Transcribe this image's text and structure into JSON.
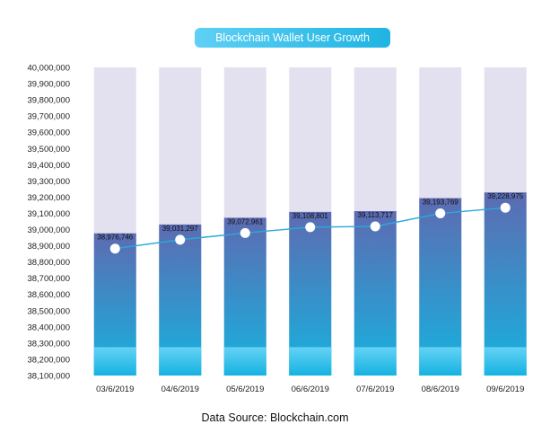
{
  "chart_data": {
    "type": "bar",
    "title": "Blockchain Wallet User Growth",
    "source": "Data Source: Blockchain.com",
    "categories": [
      "03/6/2019",
      "04/6/2019",
      "05/6/2019",
      "06/6/2019",
      "07/6/2019",
      "08/6/2019",
      "09/6/2019"
    ],
    "series": [
      {
        "values": [
          38976746,
          39031297,
          39072961,
          39108801,
          39113717,
          39193769,
          39228975
        ]
      }
    ],
    "data_labels": [
      "38,976,746",
      "39,031,297",
      "39,072,961",
      "39,108,801",
      "39,113,717",
      "39,193,769",
      "39,228,975"
    ],
    "ylim": [
      38100000,
      40000000
    ],
    "yticks": [
      38100000,
      38200000,
      38300000,
      38400000,
      38500000,
      38600000,
      38700000,
      38800000,
      38900000,
      39000000,
      39100000,
      39200000,
      39300000,
      39400000,
      39500000,
      39600000,
      39700000,
      39800000,
      39900000,
      40000000
    ],
    "ytick_labels": [
      "38,100,000",
      "38,200,000",
      "38,300,000",
      "38,400,000",
      "38,500,000",
      "38,600,000",
      "38,700,000",
      "38,800,000",
      "38,900,000",
      "39,000,000",
      "39,100,000",
      "39,200,000",
      "39,300,000",
      "39,400,000",
      "39,500,000",
      "39,600,000",
      "39,700,000",
      "39,800,000",
      "39,900,000",
      "40,000,000"
    ],
    "overlay": "line with markers",
    "legend": "none",
    "grid": false,
    "colors": {
      "bar_top": "#5d6bb2",
      "bar_bottom": "#15b3df",
      "bar_background": "#e3e1ef",
      "line": "#2aa9dc",
      "title_pill": "#29b8e6"
    }
  }
}
